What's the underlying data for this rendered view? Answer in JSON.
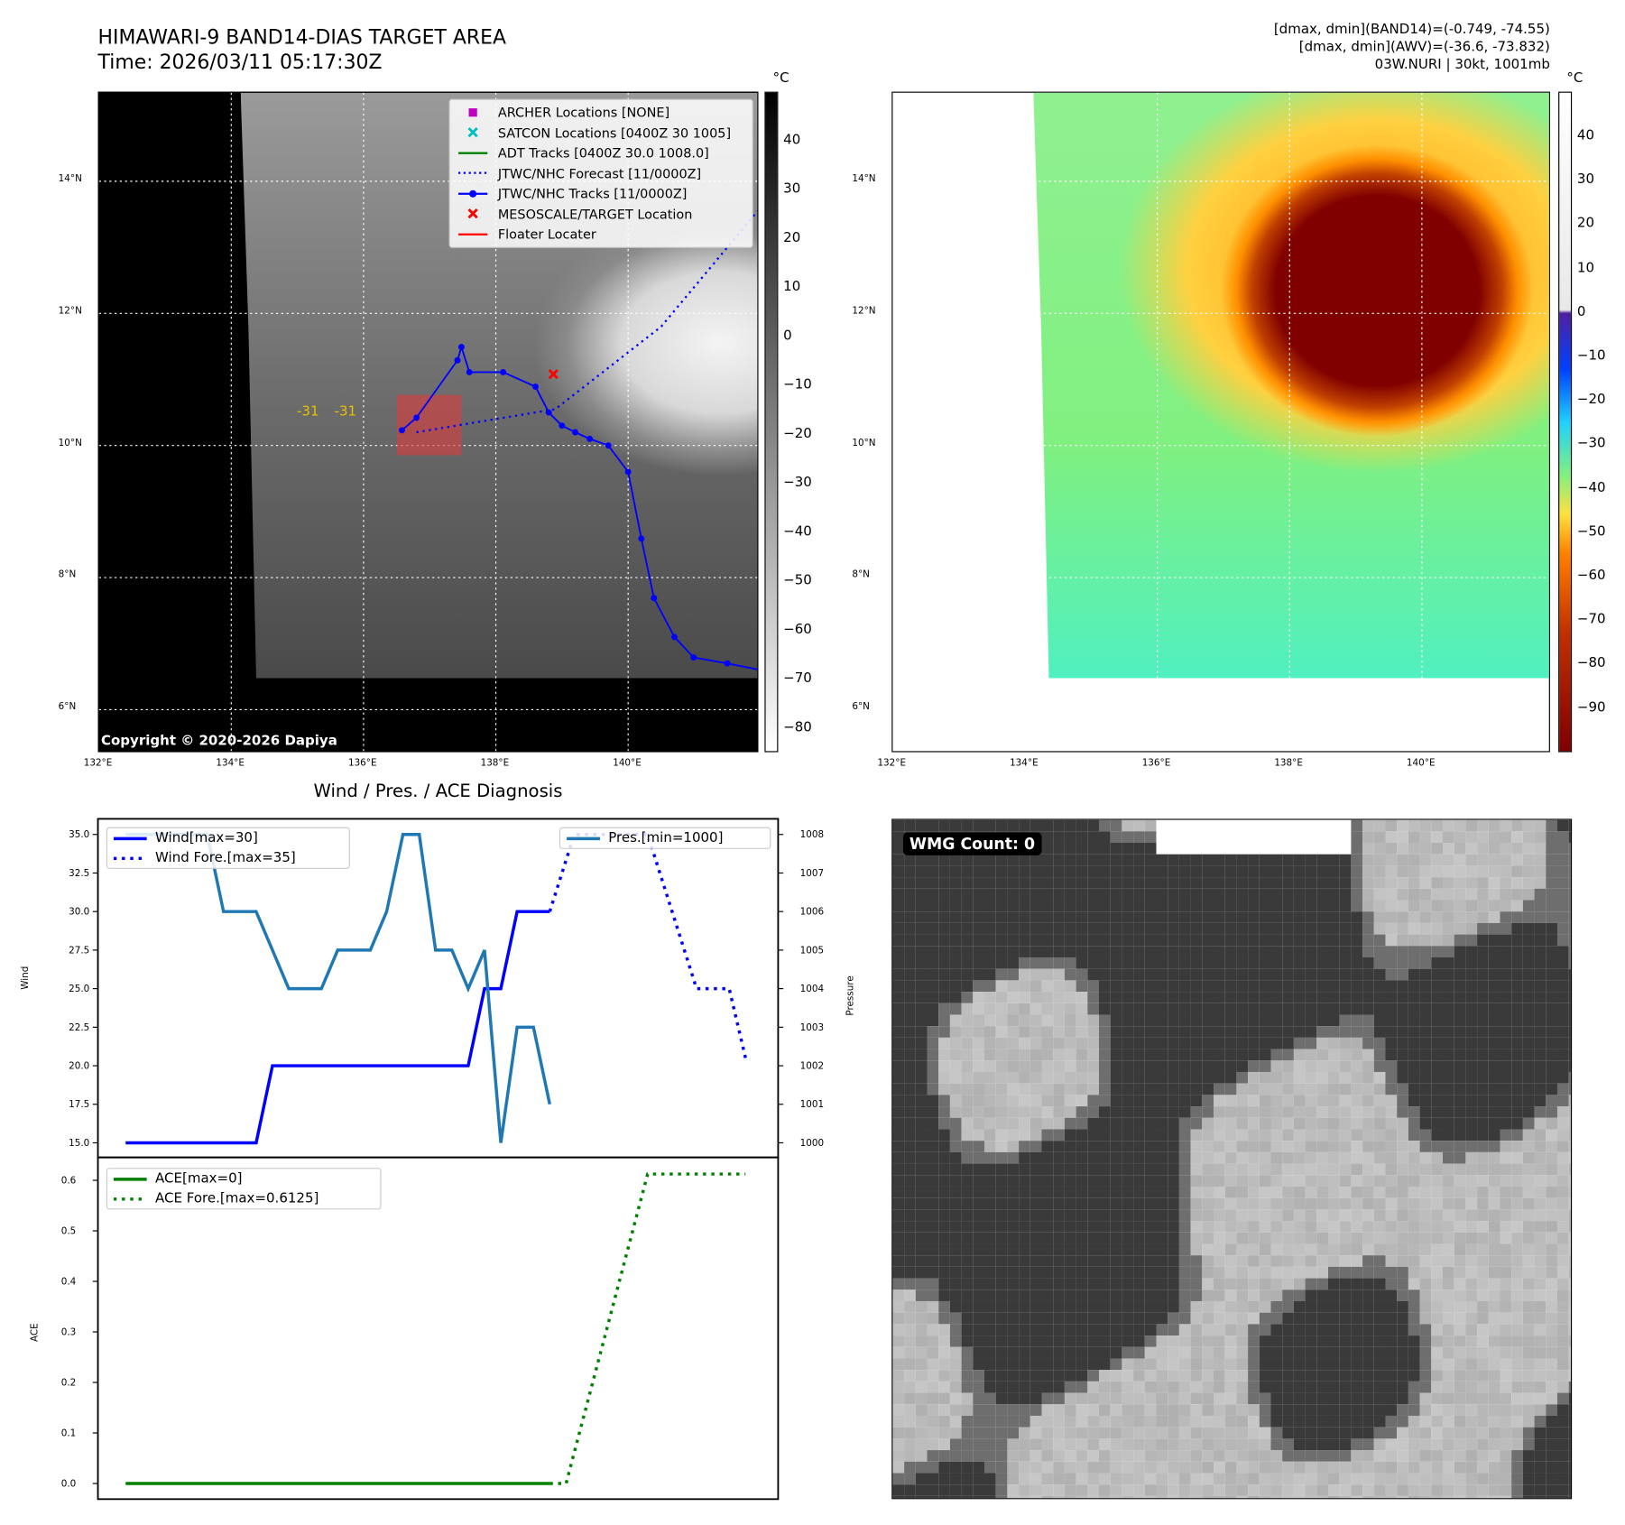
{
  "header": {
    "title": "HIMAWARI-9 BAND14-DIAS TARGET AREA",
    "time": "Time: 2026/03/11 05:17:30Z",
    "stats_band14": "[dmax, dmin](BAND14)=(-0.749, -74.55)",
    "stats_awv": "[dmax, dmin](AWV)=(-36.6, -73.832)",
    "storm": "03W.NURI | 30kt, 1001mb"
  },
  "map": {
    "lon_labels": [
      "132°E",
      "134°E",
      "136°E",
      "138°E",
      "140°E"
    ],
    "lat_labels": [
      "14°N",
      "12°N",
      "10°N",
      "8°N",
      "6°N"
    ],
    "copyright": "Copyright © 2020-2026 Dapiya",
    "unit": "°C",
    "contour_labels": [
      "-31",
      "-31"
    ],
    "legend": [
      {
        "label": "ARCHER Locations [NONE]",
        "color": "#c000c0",
        "icon": "square-marker"
      },
      {
        "label": "SATCON Locations [0400Z 30 1005]",
        "color": "#00bfbf",
        "icon": "x-marker"
      },
      {
        "label": "ADT Tracks [0400Z 30.0 1008.0]",
        "color": "#008000",
        "icon": "solid-line"
      },
      {
        "label": "JTWC/NHC Forecast [11/0000Z]",
        "color": "#0000ff",
        "icon": "dotted-line"
      },
      {
        "label": "JTWC/NHC Tracks [11/0000Z]",
        "color": "#0000ff",
        "icon": "line-dot"
      },
      {
        "label": "MESOSCALE/TARGET Location",
        "color": "#ff0000",
        "icon": "x-marker"
      },
      {
        "label": "Floater Locater",
        "color": "#ff0000",
        "icon": "solid-line"
      }
    ],
    "track": [
      [
        136.58,
        10.23
      ],
      [
        136.8,
        10.42
      ],
      [
        137.42,
        11.29
      ],
      [
        137.48,
        11.49
      ],
      [
        137.6,
        11.11
      ],
      [
        138.11,
        11.11
      ],
      [
        138.6,
        10.89
      ],
      [
        138.8,
        10.5
      ],
      [
        139.0,
        10.3
      ],
      [
        139.2,
        10.2
      ],
      [
        139.42,
        10.1
      ],
      [
        139.7,
        10.0
      ],
      [
        140.0,
        9.6
      ],
      [
        140.2,
        8.59
      ],
      [
        140.39,
        7.69
      ],
      [
        140.7,
        7.1
      ],
      [
        140.99,
        6.79
      ],
      [
        141.5,
        6.7
      ],
      [
        142.0,
        6.6
      ]
    ],
    "forecast": [
      [
        136.8,
        10.2
      ],
      [
        138.0,
        10.4
      ],
      [
        138.9,
        10.55
      ],
      [
        140.5,
        11.8
      ],
      [
        142.0,
        13.6
      ]
    ],
    "target": [
      138.87,
      11.08
    ],
    "left_cbar_ticks": [
      "40",
      "30",
      "20",
      "10",
      "0",
      "−10",
      "−20",
      "−30",
      "−40",
      "−50",
      "−60",
      "−70",
      "−80"
    ],
    "right_cbar_ticks": [
      "40",
      "30",
      "20",
      "10",
      "0",
      "−10",
      "−20",
      "−30",
      "−40",
      "−50",
      "−60",
      "−70",
      "−80",
      "−90"
    ]
  },
  "wmg": {
    "label": "WMG Count: 0"
  },
  "chart_data": [
    {
      "type": "line",
      "title": "Wind / Pres. / ACE Diagnosis",
      "ylabel": "Wind",
      "ylabel2": "Pressure",
      "ylim": [
        15,
        35
      ],
      "ylim2": [
        1000,
        1008
      ],
      "xlim": [
        -1.7,
        40
      ],
      "yticks": [
        "15.0",
        "17.5",
        "20.0",
        "22.5",
        "25.0",
        "27.5",
        "30.0",
        "32.5",
        "35.0"
      ],
      "yticks2": [
        "1000",
        "1001",
        "1002",
        "1003",
        "1004",
        "1005",
        "1006",
        "1007",
        "1008"
      ],
      "series": [
        {
          "name": "Wind[max=30]",
          "axis": "left",
          "style": "solid",
          "color": "#0000ff",
          "x": [
            0,
            8,
            9,
            21,
            22,
            23,
            24,
            26
          ],
          "y": [
            15,
            15,
            20,
            20,
            25,
            25,
            30,
            30
          ]
        },
        {
          "name": "Wind Fore.[max=35]",
          "axis": "left",
          "style": "dotted",
          "color": "#0000ff",
          "x": [
            26,
            27.5,
            32,
            33.5,
            35,
            37,
            38
          ],
          "y": [
            30,
            35,
            35,
            30,
            25,
            25,
            20.5
          ]
        },
        {
          "name": "Pres.[min=1000]",
          "axis": "right",
          "style": "solid",
          "color": "#1f77b4",
          "x": [
            0,
            5,
            6,
            8,
            10,
            12,
            13,
            15,
            16,
            17,
            18,
            19,
            20,
            21,
            22,
            23,
            24,
            25,
            26
          ],
          "y": [
            1008,
            1008,
            1006,
            1006,
            1004,
            1004,
            1005,
            1005,
            1006,
            1008,
            1008,
            1005,
            1005,
            1004,
            1005,
            1000,
            1003,
            1003,
            1001
          ]
        }
      ]
    },
    {
      "type": "line",
      "ylabel": "ACE",
      "ylim": [
        -0.03,
        0.645
      ],
      "xlim": [
        -1.7,
        40
      ],
      "yticks": [
        "0.0",
        "0.1",
        "0.2",
        "0.3",
        "0.4",
        "0.5",
        "0.6"
      ],
      "series": [
        {
          "name": "ACE[max=0]",
          "style": "solid",
          "color": "#008000",
          "x": [
            0,
            26
          ],
          "y": [
            0,
            0
          ]
        },
        {
          "name": "ACE Fore.[max=0.6125]",
          "style": "dotted",
          "color": "#008000",
          "x": [
            26,
            27,
            32,
            38
          ],
          "y": [
            0,
            0,
            0.6125,
            0.6125
          ]
        }
      ]
    }
  ]
}
